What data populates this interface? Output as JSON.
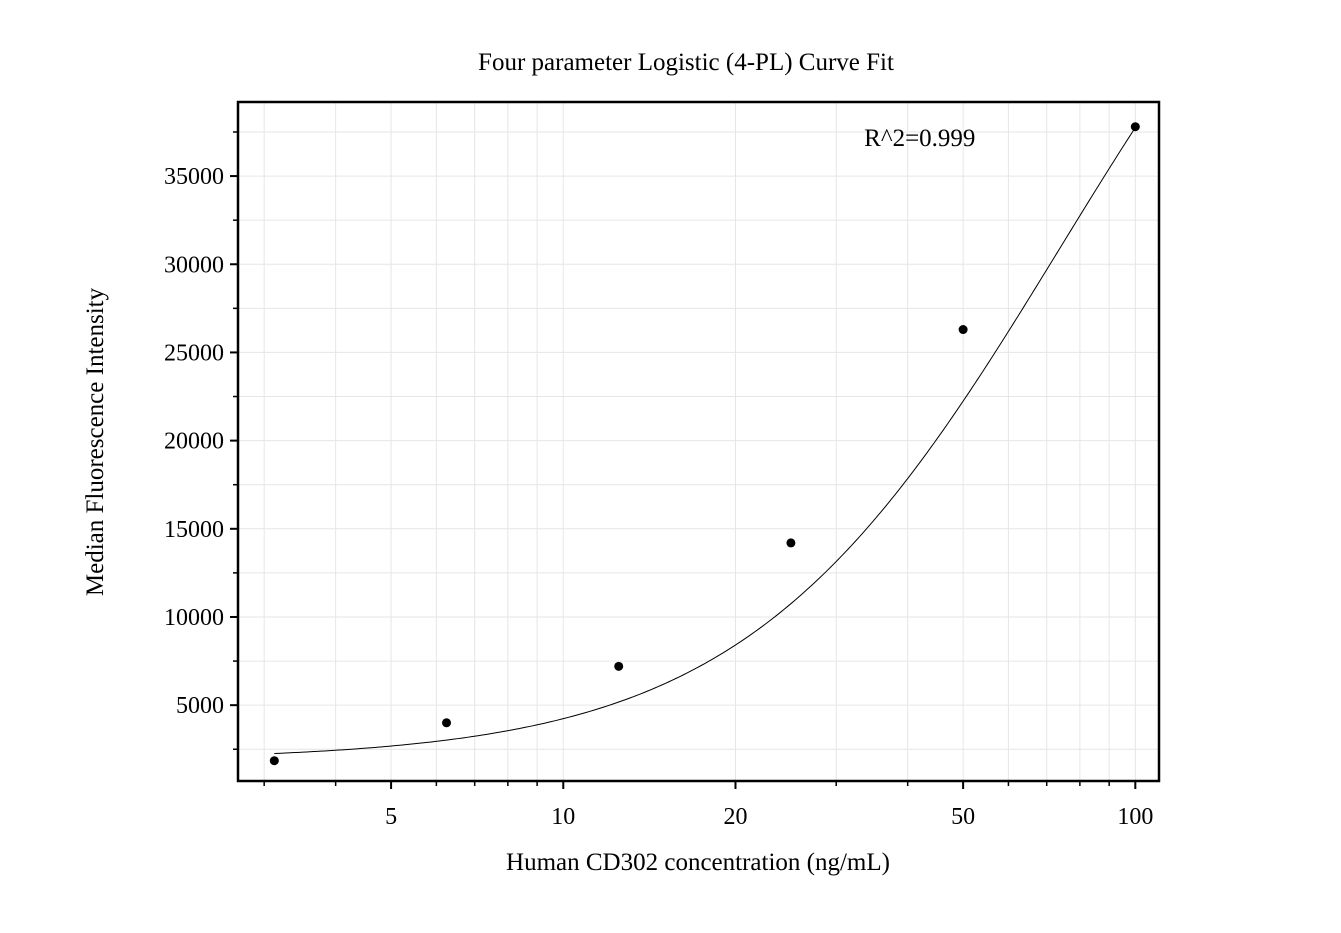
{
  "chart_data": {
    "type": "scatter",
    "title": "Four parameter Logistic (4-PL) Curve Fit",
    "xlabel": "Human CD302 concentration (ng/mL)",
    "ylabel": "Median Fluorescence Intensity",
    "x_scale": "log",
    "xlim": [
      2.7,
      110
    ],
    "ylim": [
      700,
      39200
    ],
    "x_ticks": [
      5,
      10,
      20,
      50,
      100
    ],
    "x_tick_labels": [
      "5",
      "10",
      "20",
      "50",
      "100"
    ],
    "x_minor_ticks": [
      3,
      4,
      6,
      7,
      8,
      9,
      30,
      40,
      60,
      70,
      80,
      90
    ],
    "y_ticks": [
      5000,
      10000,
      15000,
      20000,
      25000,
      30000,
      35000
    ],
    "y_tick_labels": [
      "5000",
      "10000",
      "15000",
      "20000",
      "25000",
      "30000",
      "35000"
    ],
    "y_minor_ticks": [
      2500,
      7500,
      12500,
      17500,
      22500,
      27500,
      32500,
      37500
    ],
    "grid": true,
    "series": [
      {
        "kind": "points",
        "x": [
          3.125,
          6.25,
          12.5,
          25,
          50,
          100
        ],
        "y": [
          1850,
          4000,
          7200,
          14200,
          26300,
          37800
        ]
      },
      {
        "kind": "fit-curve",
        "x_range": [
          3.125,
          100
        ],
        "params": {
          "bottom": 1869,
          "top": 60000,
          "ec50": 73.9,
          "hill": 1.58
        }
      }
    ],
    "annotations": [
      {
        "text": "R^2=0.999",
        "x": 42,
        "y": 36700
      }
    ]
  }
}
